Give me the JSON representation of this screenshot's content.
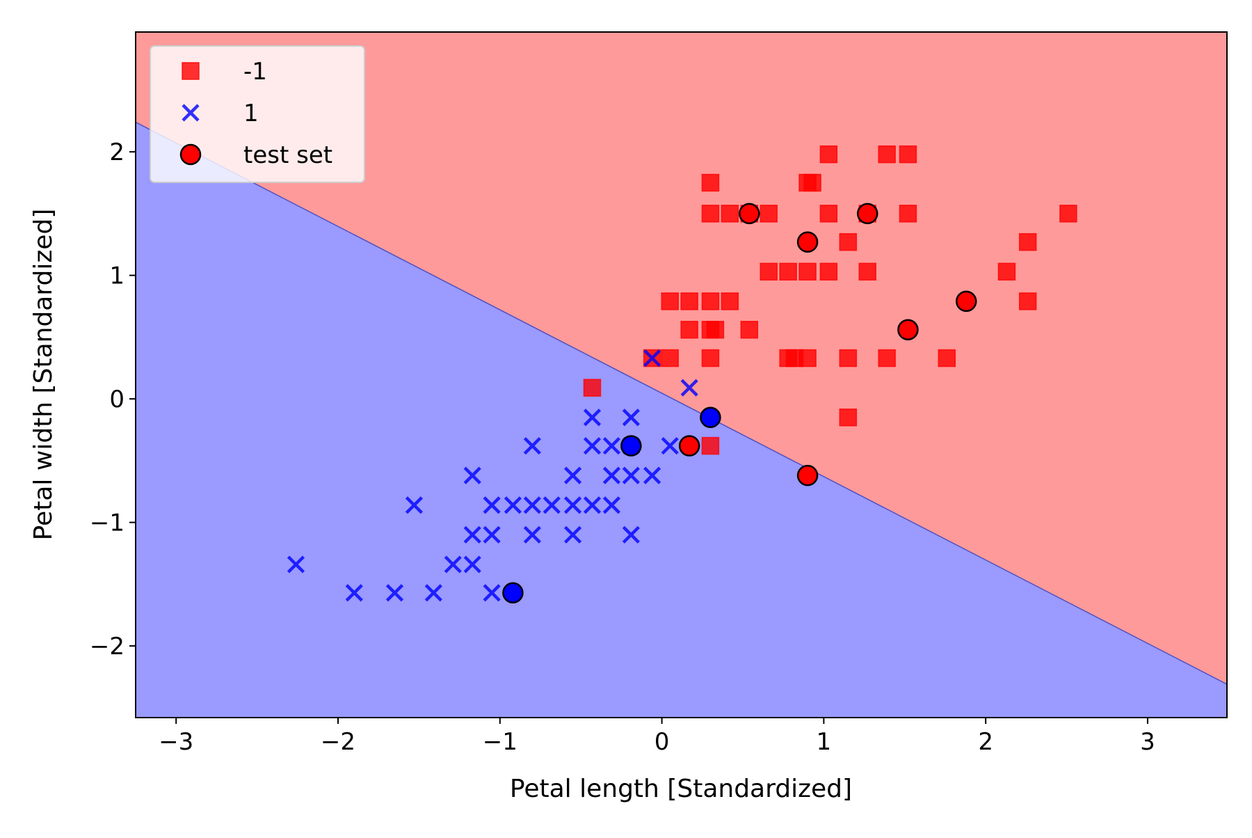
{
  "chart_data": {
    "type": "scatter",
    "title": "",
    "xlabel": "Petal length [Standardized]",
    "ylabel": "Petal width [Standardized]",
    "xlim": [
      -3.25,
      3.49
    ],
    "ylim": [
      -2.58,
      2.97
    ],
    "x_ticks": [
      -3,
      -2,
      -1,
      0,
      1,
      2,
      3
    ],
    "y_ticks": [
      -2,
      -1,
      0,
      1,
      2
    ],
    "x_tick_labels": [
      "−3",
      "−2",
      "−1",
      "0",
      "1",
      "2",
      "3"
    ],
    "y_tick_labels": [
      "−2",
      "−1",
      "0",
      "1",
      "2"
    ],
    "grid": false,
    "legend_position": "top-left",
    "decision_boundary": {
      "line": [
        [
          -3.25,
          2.24
        ],
        [
          3.49,
          -2.31
        ]
      ],
      "region_above_class": "-1",
      "region_below_class": "1",
      "region_above_color": "#ff9a9a",
      "region_below_color": "#9a9aff",
      "line_color": "#5050c0"
    },
    "series": [
      {
        "name": "-1",
        "marker": "square",
        "color": "#ff0000",
        "points": [
          [
            1.03,
            1.98
          ],
          [
            1.39,
            1.98
          ],
          [
            1.52,
            1.98
          ],
          [
            0.3,
            1.75
          ],
          [
            0.9,
            1.75
          ],
          [
            0.93,
            1.75
          ],
          [
            0.3,
            1.5
          ],
          [
            0.42,
            1.5
          ],
          [
            0.54,
            1.5
          ],
          [
            0.66,
            1.5
          ],
          [
            1.03,
            1.5
          ],
          [
            1.27,
            1.5
          ],
          [
            1.52,
            1.5
          ],
          [
            2.51,
            1.5
          ],
          [
            1.15,
            1.27
          ],
          [
            2.26,
            1.27
          ],
          [
            0.66,
            1.03
          ],
          [
            0.78,
            1.03
          ],
          [
            0.9,
            1.03
          ],
          [
            1.03,
            1.03
          ],
          [
            1.27,
            1.03
          ],
          [
            2.13,
            1.03
          ],
          [
            0.05,
            0.79
          ],
          [
            0.17,
            0.79
          ],
          [
            0.3,
            0.79
          ],
          [
            0.42,
            0.79
          ],
          [
            2.26,
            0.79
          ],
          [
            0.17,
            0.56
          ],
          [
            0.3,
            0.56
          ],
          [
            0.33,
            0.56
          ],
          [
            0.54,
            0.56
          ],
          [
            -0.06,
            0.33
          ],
          [
            0.05,
            0.33
          ],
          [
            0.3,
            0.33
          ],
          [
            0.78,
            0.33
          ],
          [
            0.82,
            0.33
          ],
          [
            0.9,
            0.33
          ],
          [
            1.15,
            0.33
          ],
          [
            1.39,
            0.33
          ],
          [
            1.76,
            0.33
          ],
          [
            -0.43,
            0.09
          ],
          [
            1.15,
            -0.15
          ],
          [
            0.3,
            -0.38
          ]
        ]
      },
      {
        "name": "1",
        "marker": "x",
        "color": "#0000ff",
        "points": [
          [
            -0.06,
            0.33
          ],
          [
            0.17,
            0.09
          ],
          [
            -0.43,
            -0.15
          ],
          [
            -0.19,
            -0.15
          ],
          [
            -0.8,
            -0.38
          ],
          [
            -0.43,
            -0.38
          ],
          [
            -0.31,
            -0.38
          ],
          [
            -0.19,
            -0.38
          ],
          [
            0.05,
            -0.38
          ],
          [
            -1.17,
            -0.62
          ],
          [
            -0.55,
            -0.62
          ],
          [
            -0.31,
            -0.62
          ],
          [
            -0.19,
            -0.62
          ],
          [
            -0.06,
            -0.62
          ],
          [
            -1.53,
            -0.86
          ],
          [
            -1.05,
            -0.86
          ],
          [
            -0.92,
            -0.86
          ],
          [
            -0.8,
            -0.86
          ],
          [
            -0.68,
            -0.86
          ],
          [
            -0.55,
            -0.86
          ],
          [
            -0.43,
            -0.86
          ],
          [
            -0.31,
            -0.86
          ],
          [
            -1.17,
            -1.1
          ],
          [
            -1.05,
            -1.1
          ],
          [
            -0.8,
            -1.1
          ],
          [
            -0.55,
            -1.1
          ],
          [
            -0.19,
            -1.1
          ],
          [
            -2.26,
            -1.34
          ],
          [
            -1.29,
            -1.34
          ],
          [
            -1.17,
            -1.34
          ],
          [
            -1.9,
            -1.57
          ],
          [
            -1.65,
            -1.57
          ],
          [
            -1.41,
            -1.57
          ],
          [
            -1.05,
            -1.57
          ]
        ]
      },
      {
        "name": "test set",
        "marker": "circle",
        "color": "#000000",
        "points": [
          [
            0.54,
            1.5,
            "#ff0000"
          ],
          [
            1.27,
            1.5,
            "#ff0000"
          ],
          [
            0.9,
            1.27,
            "#ff0000"
          ],
          [
            1.88,
            0.79,
            "#ff0000"
          ],
          [
            1.52,
            0.56,
            "#ff0000"
          ],
          [
            0.17,
            -0.38,
            "#ff0000"
          ],
          [
            0.9,
            -0.62,
            "#ff0000"
          ],
          [
            0.3,
            -0.15,
            "#0000ff"
          ],
          [
            -0.19,
            -0.38,
            "#0000ff"
          ],
          [
            -0.92,
            -1.57,
            "#0000ff"
          ]
        ]
      }
    ],
    "legend": [
      {
        "label": "-1",
        "marker": "square",
        "color": "#ff0000"
      },
      {
        "label": "1",
        "marker": "x",
        "color": "#0000ff"
      },
      {
        "label": "test set",
        "marker": "circle",
        "color": "#ff0000"
      }
    ]
  }
}
